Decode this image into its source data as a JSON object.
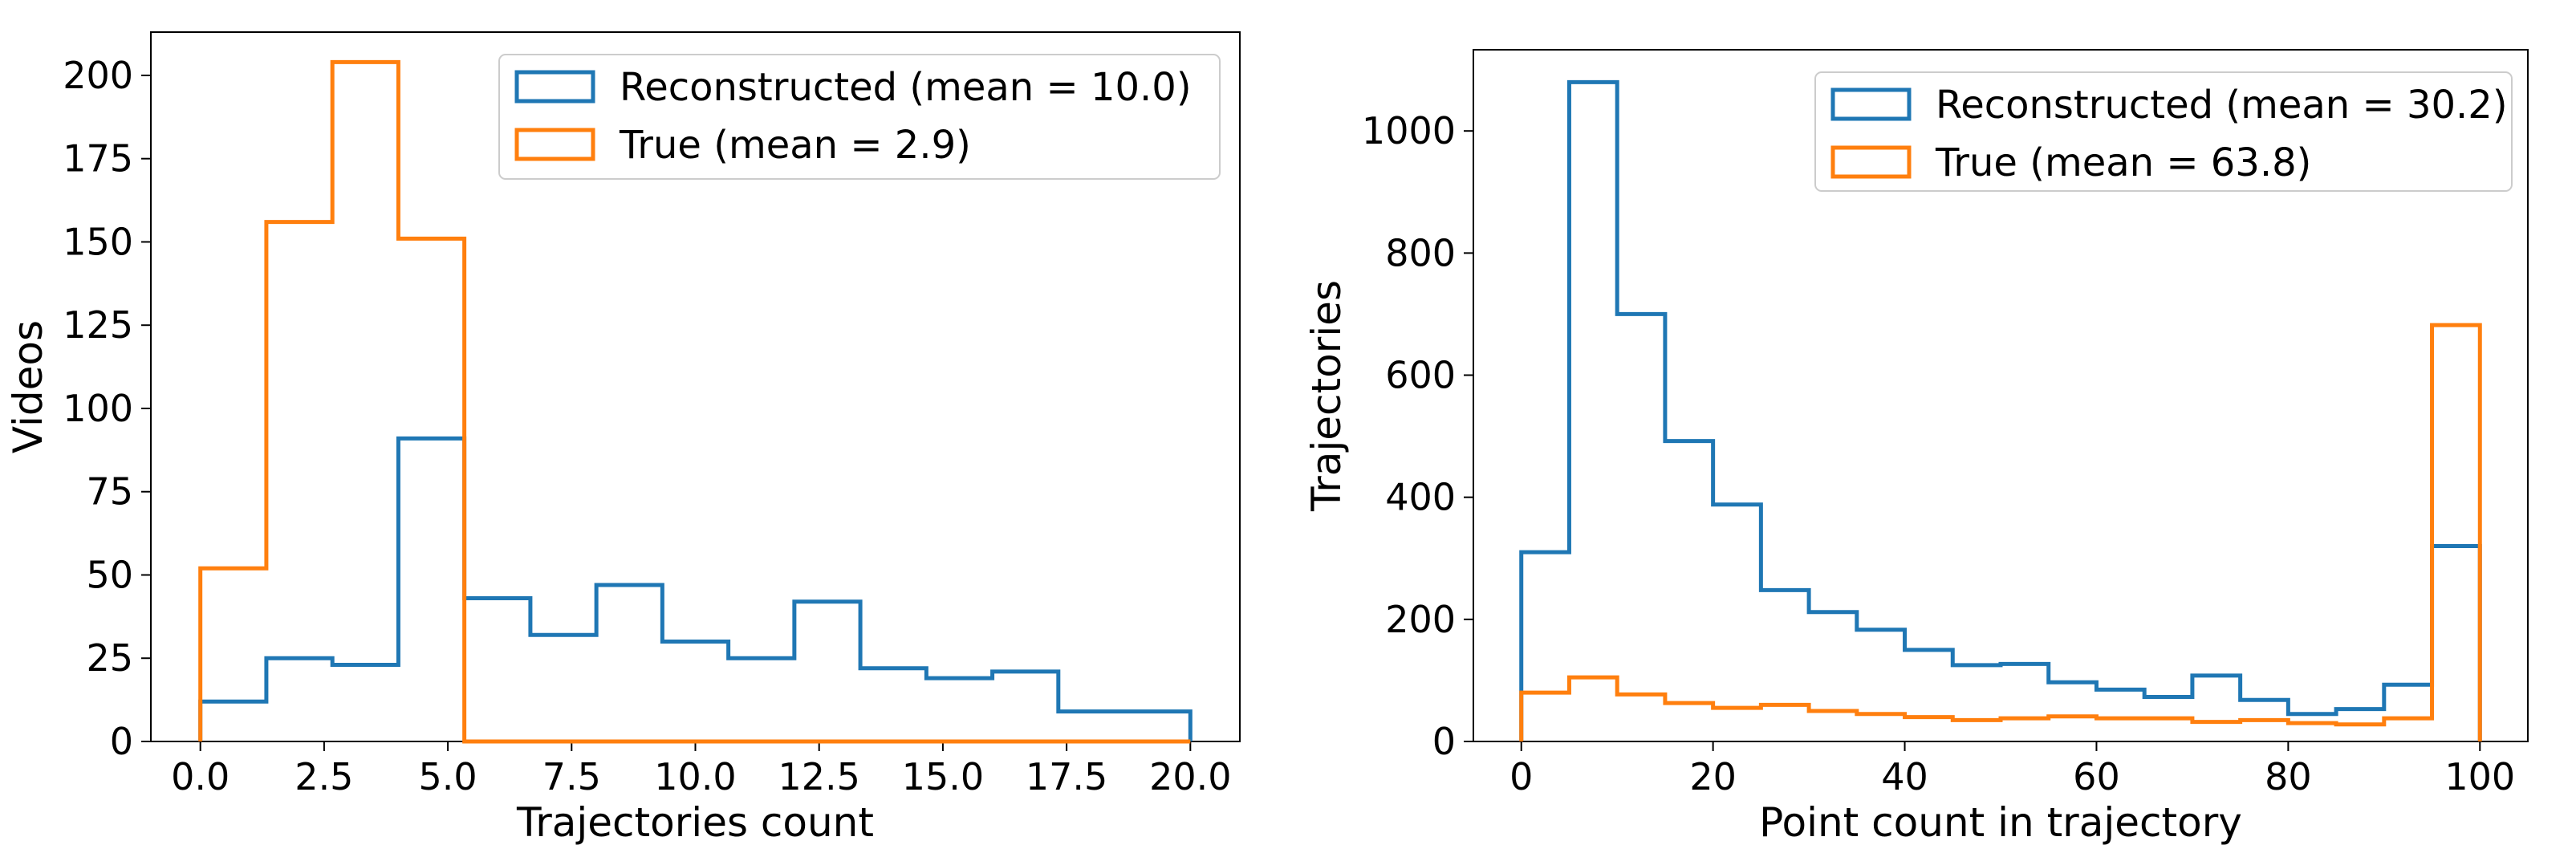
{
  "chart_data": [
    {
      "type": "histogram",
      "title": "",
      "xlabel": "Trajectories count",
      "ylabel": "Videos",
      "xlim": [
        -1.0,
        21.0
      ],
      "ylim": [
        0,
        213
      ],
      "xticks": [
        0.0,
        2.5,
        5.0,
        7.5,
        10.0,
        12.5,
        15.0,
        17.5,
        20.0
      ],
      "xtick_labels": [
        "0.0",
        "2.5",
        "5.0",
        "7.5",
        "10.0",
        "12.5",
        "15.0",
        "17.5",
        "20.0"
      ],
      "yticks": [
        0,
        25,
        50,
        75,
        100,
        125,
        150,
        175,
        200
      ],
      "ytick_labels": [
        "0",
        "25",
        "50",
        "75",
        "100",
        "125",
        "150",
        "175",
        "200"
      ],
      "legend_position": "top-right",
      "series": [
        {
          "name": "Reconstructed (mean = 10.0)",
          "color": "#1f77b4",
          "bin_edges": [
            0.0,
            1.333,
            2.667,
            4.0,
            5.333,
            6.667,
            8.0,
            9.333,
            10.667,
            12.0,
            13.333,
            14.667,
            16.0,
            17.333,
            18.667,
            20.0
          ],
          "counts": [
            12,
            25,
            23,
            91,
            43,
            32,
            47,
            30,
            25,
            42,
            22,
            19,
            21,
            9,
            9
          ]
        },
        {
          "name": "True (mean = 2.9)",
          "color": "#ff7f0e",
          "bin_edges": [
            0.0,
            1.333,
            2.667,
            4.0,
            5.333,
            6.667,
            8.0,
            9.333,
            10.667,
            12.0,
            13.333,
            14.667,
            16.0,
            17.333,
            18.667,
            20.0
          ],
          "counts": [
            52,
            156,
            204,
            151,
            0,
            0,
            0,
            0,
            0,
            0,
            0,
            0,
            0,
            0,
            0
          ]
        }
      ]
    },
    {
      "type": "histogram",
      "title": "",
      "xlabel": "Point count in trajectory",
      "ylabel": "Trajectories",
      "xlim": [
        -5.0,
        105.0
      ],
      "ylim": [
        0,
        1133
      ],
      "xticks": [
        0,
        20,
        40,
        60,
        80,
        100
      ],
      "xtick_labels": [
        "0",
        "20",
        "40",
        "60",
        "80",
        "100"
      ],
      "yticks": [
        0,
        200,
        400,
        600,
        800,
        1000
      ],
      "ytick_labels": [
        "0",
        "200",
        "400",
        "600",
        "800",
        "1000"
      ],
      "legend_position": "top-right",
      "series": [
        {
          "name": "Reconstructed (mean = 30.2)",
          "color": "#1f77b4",
          "bin_edges": [
            0,
            5,
            10,
            15,
            20,
            25,
            30,
            35,
            40,
            45,
            50,
            55,
            60,
            65,
            70,
            75,
            80,
            85,
            90,
            95,
            100
          ],
          "counts": [
            310,
            1080,
            700,
            492,
            388,
            248,
            212,
            183,
            150,
            125,
            127,
            97,
            85,
            73,
            108,
            68,
            45,
            53,
            93,
            320
          ]
        },
        {
          "name": "True (mean = 63.8)",
          "color": "#ff7f0e",
          "bin_edges": [
            0,
            5,
            10,
            15,
            20,
            25,
            30,
            35,
            40,
            45,
            50,
            55,
            60,
            65,
            70,
            75,
            80,
            85,
            90,
            95,
            100
          ],
          "counts": [
            80,
            105,
            77,
            63,
            55,
            60,
            50,
            45,
            40,
            35,
            38,
            41,
            38,
            38,
            32,
            35,
            30,
            28,
            38,
            682
          ]
        }
      ]
    }
  ]
}
